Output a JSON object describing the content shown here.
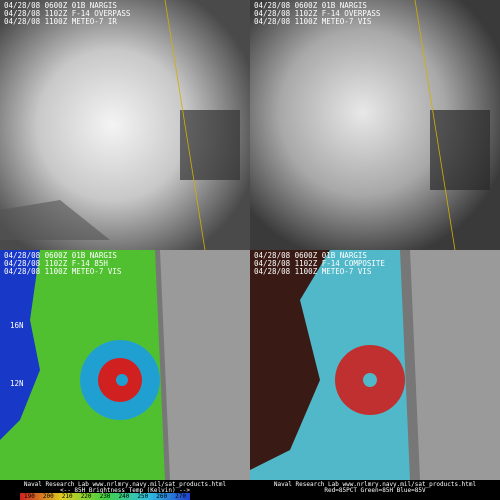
{
  "panels": [
    {
      "lines": [
        "04/28/08 0600Z 01B NARGIS",
        "04/28/08 1102Z F-14 OVERPASS",
        "04/28/08 1100Z METEO-7 IR"
      ]
    },
    {
      "lines": [
        "04/28/08 0600Z 01B NARGIS",
        "04/28/08 1102Z F-14 OVERPASS",
        "04/28/08 1100Z METEO-7 VIS"
      ]
    },
    {
      "lines": [
        "04/28/08 0600Z 01B NARGIS",
        "04/28/08 1102Z F-14 85H",
        "04/28/08 1100Z METEO-7 VIS"
      ],
      "lat_labels": [
        "16N",
        "12N"
      ],
      "footer": [
        "Naval Research Lab  www.nrlmry.navy.mil/sat_products.html",
        "<--  85H Brightness Temp (Kelvin)  -->"
      ],
      "colorbar_ticks": [
        190,
        200,
        210,
        220,
        230,
        240,
        250,
        260,
        270
      ]
    },
    {
      "lines": [
        "04/28/08 0600Z 01B NARGIS",
        "04/28/08 1102Z F-14 COMPOSITE",
        "04/28/08 1100Z METEO-7 VIS"
      ],
      "footer": [
        "Naval Research Lab  www.nrlmry.navy.mil/sat_products.html",
        "Red=85PCT Green=85H Blue=85V"
      ]
    }
  ]
}
